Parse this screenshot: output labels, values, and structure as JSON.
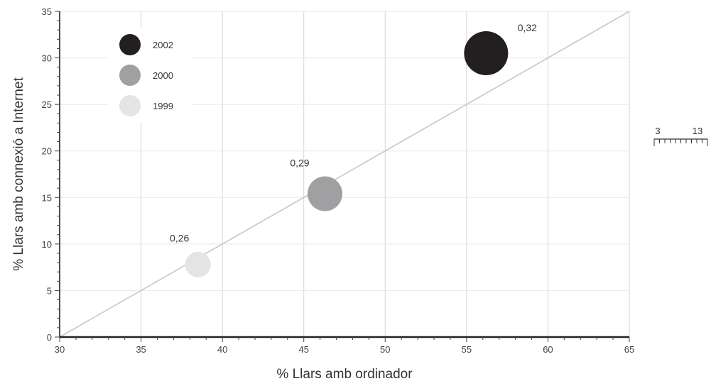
{
  "chart_data": {
    "type": "scatter",
    "title": "",
    "xlabel": "% Llars amb ordinador",
    "ylabel": "% Llars amb connexió a Internet",
    "xlim": [
      30,
      65
    ],
    "ylim": [
      0,
      35
    ],
    "xticks": [
      30,
      35,
      40,
      45,
      50,
      55,
      60,
      65
    ],
    "yticks": [
      0,
      5,
      10,
      15,
      20,
      25,
      30,
      35
    ],
    "grid": true,
    "legend_position": "top-left",
    "reference_line": {
      "from": [
        30,
        0
      ],
      "to": [
        65,
        35
      ],
      "color": "#c8c8c8"
    },
    "series": [
      {
        "name": "1999",
        "x": 38.5,
        "y": 7.8,
        "size": 0.26,
        "label": "0,26",
        "color": "#e4e4e4"
      },
      {
        "name": "2000",
        "x": 46.3,
        "y": 15.4,
        "size": 0.29,
        "label": "0,29",
        "color": "#a0a0a2"
      },
      {
        "name": "2002",
        "x": 56.2,
        "y": 30.5,
        "size": 0.32,
        "label": "0,32",
        "color": "#231f20"
      }
    ],
    "legend_order": [
      "2002",
      "2000",
      "1999"
    ],
    "size_scale": {
      "labels": [
        "3",
        "13"
      ]
    }
  }
}
